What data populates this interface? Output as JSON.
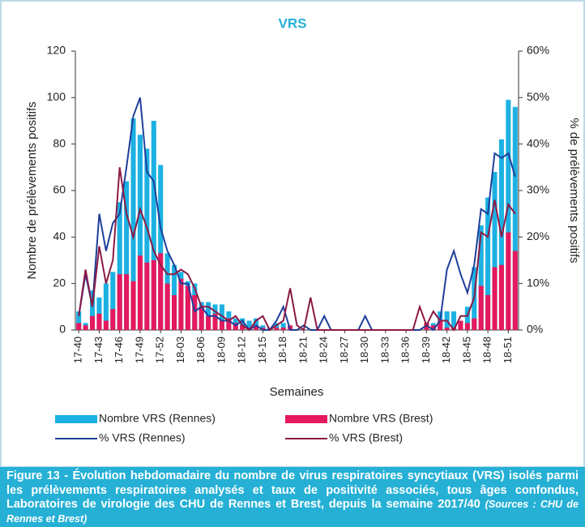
{
  "chart_data": {
    "type": "bar-line",
    "title": "VRS",
    "x_label": "Semaines",
    "y_label": "Nombre de prélèvements positifs",
    "y2_label": "% de prélèvements positifs",
    "categories": [
      "17-40",
      null,
      null,
      "17-43",
      null,
      null,
      "17-46",
      null,
      null,
      "17-49",
      null,
      null,
      "17-52",
      null,
      null,
      "18-03",
      null,
      null,
      "18-06",
      null,
      null,
      "18-09",
      null,
      null,
      "18-12",
      null,
      null,
      "18-15",
      null,
      null,
      "18-18",
      null,
      null,
      "18-21",
      null,
      null,
      "18-24",
      null,
      null,
      "18-27",
      null,
      null,
      "18-30",
      null,
      null,
      "18-33",
      null,
      null,
      "18-36",
      null,
      null,
      "18-39",
      null,
      null,
      "18-42",
      null,
      null,
      "18-45",
      null,
      null,
      "18-48",
      null,
      null,
      "18-51",
      null
    ],
    "ylim": [
      0,
      120
    ],
    "yticks": [
      0,
      20,
      40,
      60,
      80,
      100,
      120
    ],
    "y2lim": [
      0,
      60
    ],
    "y2ticks": [
      {
        "value": 0,
        "label": "0%"
      },
      {
        "value": 10,
        "label": "10%"
      },
      {
        "value": 20,
        "label": "20%"
      },
      {
        "value": 30,
        "label": "30%"
      },
      {
        "value": 40,
        "label": "40%"
      },
      {
        "value": 50,
        "label": "50%"
      },
      {
        "value": 60,
        "label": "60%"
      }
    ],
    "series": [
      {
        "name": "Nombre VRS (Rennes)",
        "kind": "bar",
        "color": "#1cb1e2",
        "values": [
          8,
          3,
          17,
          14,
          20,
          25,
          55,
          64,
          91,
          84,
          78,
          90,
          71,
          33,
          28,
          25,
          21,
          20,
          12,
          12,
          11,
          11,
          8,
          5,
          5,
          4,
          5,
          2,
          1,
          3,
          3,
          0,
          0,
          0,
          0,
          0,
          0,
          0,
          0,
          0,
          0,
          0,
          0,
          0,
          0,
          0,
          0,
          0,
          0,
          0,
          0,
          2,
          3,
          8,
          8,
          8,
          3,
          10,
          27,
          45,
          57,
          68,
          82,
          99,
          96
        ]
      },
      {
        "name": "Nombre VRS (Brest)",
        "kind": "bar",
        "color": "#e5195e",
        "values": [
          3,
          2,
          6,
          7,
          4,
          9,
          24,
          24,
          21,
          32,
          29,
          30,
          33,
          20,
          15,
          22,
          19,
          15,
          10,
          6,
          7,
          4,
          5,
          3,
          2,
          1,
          2,
          1,
          0,
          1,
          1,
          2,
          0,
          0,
          0,
          0,
          0,
          0,
          0,
          0,
          0,
          0,
          0,
          0,
          0,
          0,
          0,
          0,
          0,
          0,
          0,
          3,
          2,
          4,
          1,
          1,
          4,
          3,
          5,
          19,
          15,
          27,
          28,
          42,
          34
        ]
      },
      {
        "name": "% VRS (Rennes)",
        "kind": "line",
        "axis": "y2",
        "color": "#1f3f9a",
        "values": [
          3,
          12,
          5,
          25,
          17,
          23,
          25,
          35,
          46,
          50,
          34,
          32,
          22,
          17,
          14,
          10,
          10,
          4,
          5,
          3,
          3,
          2,
          2,
          1,
          2,
          0,
          1,
          0,
          0,
          2,
          5,
          0,
          0,
          1,
          0,
          0,
          3,
          0,
          0,
          0,
          0,
          0,
          3,
          0,
          0,
          0,
          0,
          0,
          0,
          0,
          0,
          1,
          0,
          2,
          13,
          17,
          12,
          8,
          14,
          26,
          25,
          38,
          37,
          38,
          33
        ]
      },
      {
        "name": "% VRS (Brest)",
        "kind": "line",
        "axis": "y2",
        "color": "#8b1a45",
        "values": [
          3,
          13,
          5,
          18,
          10,
          15,
          35,
          25,
          20,
          26,
          22,
          17,
          14,
          12,
          12,
          13,
          12,
          9,
          5,
          5,
          4,
          3,
          2,
          3,
          1,
          0,
          2,
          3,
          0,
          1,
          2,
          9,
          1,
          0,
          7,
          0,
          0,
          0,
          0,
          0,
          0,
          0,
          0,
          0,
          0,
          0,
          0,
          0,
          0,
          0,
          5,
          1,
          4,
          2,
          2,
          0,
          3,
          3,
          7,
          21,
          20,
          28,
          20,
          27,
          25
        ]
      }
    ]
  },
  "caption": {
    "text": "Figure 13 - Évolution hebdomadaire du nombre de virus respiratoires syncytiaux (VRS) isolés parmi les prélèvements respiratoires analysés et taux de positivité associés, tous âges confondus, Laboratoires de virologie des CHU de Rennes et Brest, depuis la semaine 2017/40",
    "source": "(Sources : CHU de Rennes et Brest)"
  }
}
